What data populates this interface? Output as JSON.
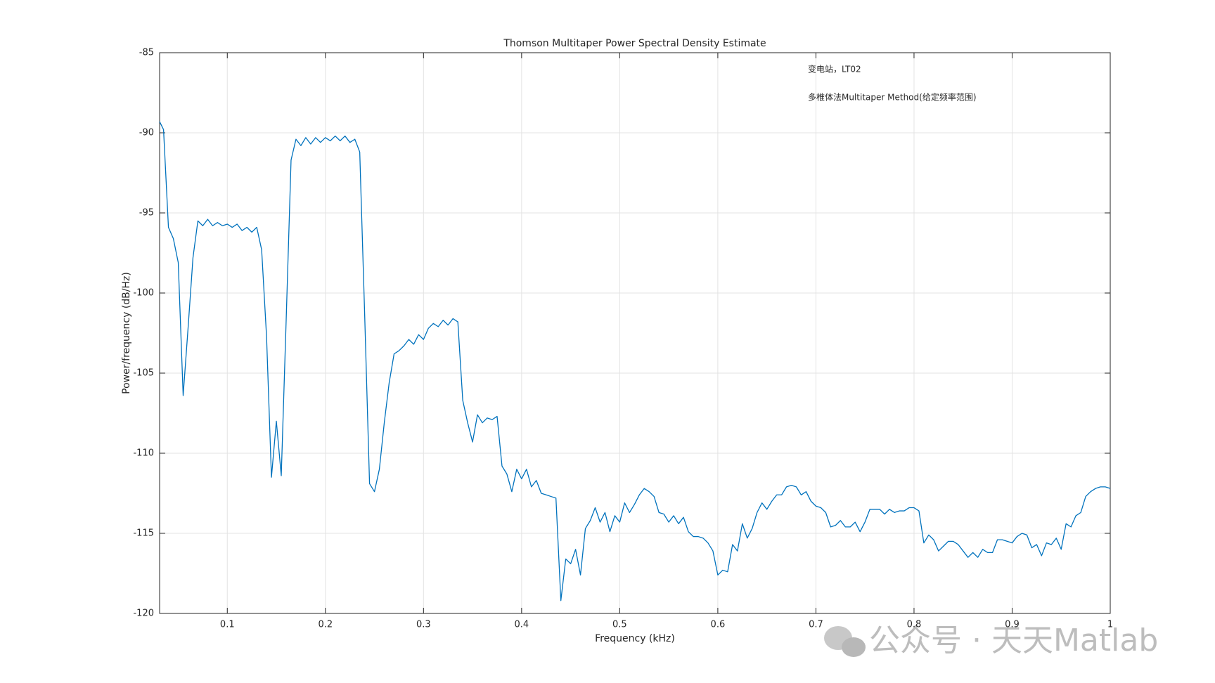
{
  "chart_data": {
    "type": "line",
    "title": "Thomson Multitaper Power Spectral Density Estimate",
    "xlabel": "Frequency (kHz)",
    "ylabel": "Power/frequency (dB/Hz)",
    "annotations": [
      "变电站，LT02",
      "多椎体法Multitaper Method(给定频率范围)"
    ],
    "watermark": "公众号 · 天天Matlab",
    "color": "#0072bd",
    "grid": true,
    "xlim": [
      0.031,
      1
    ],
    "ylim": [
      -120,
      -85
    ],
    "xticks": [
      0.1,
      0.2,
      0.3,
      0.4,
      0.5,
      0.6,
      0.7,
      0.8,
      0.9,
      1
    ],
    "yticks": [
      -120,
      -115,
      -110,
      -105,
      -100,
      -95,
      -90,
      -85
    ],
    "x": [
      0.031,
      0.035,
      0.04,
      0.045,
      0.05,
      0.055,
      0.06,
      0.065,
      0.07,
      0.075,
      0.08,
      0.085,
      0.09,
      0.095,
      0.1,
      0.105,
      0.11,
      0.115,
      0.12,
      0.125,
      0.13,
      0.135,
      0.14,
      0.145,
      0.15,
      0.155,
      0.16,
      0.165,
      0.17,
      0.175,
      0.18,
      0.185,
      0.19,
      0.195,
      0.2,
      0.205,
      0.21,
      0.215,
      0.22,
      0.225,
      0.23,
      0.235,
      0.24,
      0.245,
      0.25,
      0.255,
      0.26,
      0.265,
      0.27,
      0.275,
      0.28,
      0.285,
      0.29,
      0.295,
      0.3,
      0.305,
      0.31,
      0.315,
      0.32,
      0.325,
      0.33,
      0.335,
      0.34,
      0.345,
      0.35,
      0.355,
      0.36,
      0.365,
      0.37,
      0.375,
      0.38,
      0.385,
      0.39,
      0.395,
      0.4,
      0.405,
      0.41,
      0.415,
      0.42,
      0.425,
      0.43,
      0.435,
      0.44,
      0.445,
      0.45,
      0.455,
      0.46,
      0.465,
      0.47,
      0.475,
      0.48,
      0.485,
      0.49,
      0.495,
      0.5,
      0.505,
      0.51,
      0.515,
      0.52,
      0.525,
      0.53,
      0.535,
      0.54,
      0.545,
      0.55,
      0.555,
      0.56,
      0.565,
      0.57,
      0.575,
      0.58,
      0.585,
      0.59,
      0.595,
      0.6,
      0.605,
      0.61,
      0.615,
      0.62,
      0.625,
      0.63,
      0.635,
      0.64,
      0.645,
      0.65,
      0.655,
      0.66,
      0.665,
      0.67,
      0.675,
      0.68,
      0.685,
      0.69,
      0.695,
      0.7,
      0.705,
      0.71,
      0.715,
      0.72,
      0.725,
      0.73,
      0.735,
      0.74,
      0.745,
      0.75,
      0.755,
      0.76,
      0.765,
      0.77,
      0.775,
      0.78,
      0.785,
      0.79,
      0.795,
      0.8,
      0.805,
      0.81,
      0.815,
      0.82,
      0.825,
      0.83,
      0.835,
      0.84,
      0.845,
      0.85,
      0.855,
      0.86,
      0.865,
      0.87,
      0.875,
      0.88,
      0.885,
      0.89,
      0.895,
      0.9,
      0.905,
      0.91,
      0.915,
      0.92,
      0.925,
      0.93,
      0.935,
      0.94,
      0.945,
      0.95,
      0.955,
      0.96,
      0.965,
      0.97,
      0.975,
      0.98,
      0.985,
      0.99,
      0.995,
      1
    ],
    "values": [
      -89.3,
      -89.8,
      -95.9,
      -96.6,
      -98.1,
      -106.4,
      -102.2,
      -97.8,
      -95.5,
      -95.8,
      -95.4,
      -95.8,
      -95.6,
      -95.8,
      -95.7,
      -95.9,
      -95.7,
      -96.1,
      -95.9,
      -96.2,
      -95.9,
      -97.3,
      -102.7,
      -111.5,
      -108.0,
      -111.4,
      -101.7,
      -91.7,
      -90.4,
      -90.8,
      -90.3,
      -90.7,
      -90.3,
      -90.6,
      -90.3,
      -90.5,
      -90.2,
      -90.5,
      -90.2,
      -90.6,
      -90.4,
      -91.2,
      -101.3,
      -111.9,
      -112.4,
      -111.0,
      -108.1,
      -105.6,
      -103.8,
      -103.6,
      -103.3,
      -102.9,
      -103.2,
      -102.6,
      -102.9,
      -102.2,
      -101.9,
      -102.1,
      -101.7,
      -102.0,
      -101.6,
      -101.8,
      -106.7,
      -108.1,
      -109.3,
      -107.6,
      -108.1,
      -107.8,
      -107.9,
      -107.7,
      -110.8,
      -111.3,
      -112.4,
      -111.0,
      -111.6,
      -111.0,
      -112.1,
      -111.7,
      -112.5,
      -112.6,
      -112.7,
      -112.8,
      -119.2,
      -116.6,
      -116.9,
      -116.0,
      -117.6,
      -114.7,
      -114.2,
      -113.4,
      -114.3,
      -113.7,
      -114.9,
      -113.9,
      -114.3,
      -113.1,
      -113.7,
      -113.2,
      -112.6,
      -112.2,
      -112.4,
      -112.7,
      -113.7,
      -113.8,
      -114.3,
      -113.9,
      -114.4,
      -114.0,
      -114.9,
      -115.2,
      -115.2,
      -115.3,
      -115.6,
      -116.1,
      -117.6,
      -117.3,
      -117.4,
      -115.7,
      -116.1,
      -114.4,
      -115.3,
      -114.7,
      -113.7,
      -113.1,
      -113.5,
      -113.0,
      -112.6,
      -112.6,
      -112.1,
      -112.0,
      -112.1,
      -112.6,
      -112.4,
      -113.0,
      -113.3,
      -113.4,
      -113.7,
      -114.6,
      -114.5,
      -114.2,
      -114.6,
      -114.6,
      -114.3,
      -114.9,
      -114.3,
      -113.5,
      -113.5,
      -113.5,
      -113.8,
      -113.5,
      -113.7,
      -113.6,
      -113.6,
      -113.4,
      -113.4,
      -113.6,
      -115.6,
      -115.1,
      -115.4,
      -116.1,
      -115.8,
      -115.5,
      -115.5,
      -115.7,
      -116.1,
      -116.5,
      -116.2,
      -116.5,
      -116.0,
      -116.2,
      -116.2,
      -115.4,
      -115.4,
      -115.5,
      -115.6,
      -115.2,
      -115.0,
      -115.1,
      -115.9,
      -115.7,
      -116.4,
      -115.6,
      -115.7,
      -115.3,
      -116.0,
      -114.4,
      -114.6,
      -113.9,
      -113.7,
      -112.7,
      -112.4,
      -112.2,
      -112.1,
      -112.1,
      -112.2
    ]
  }
}
